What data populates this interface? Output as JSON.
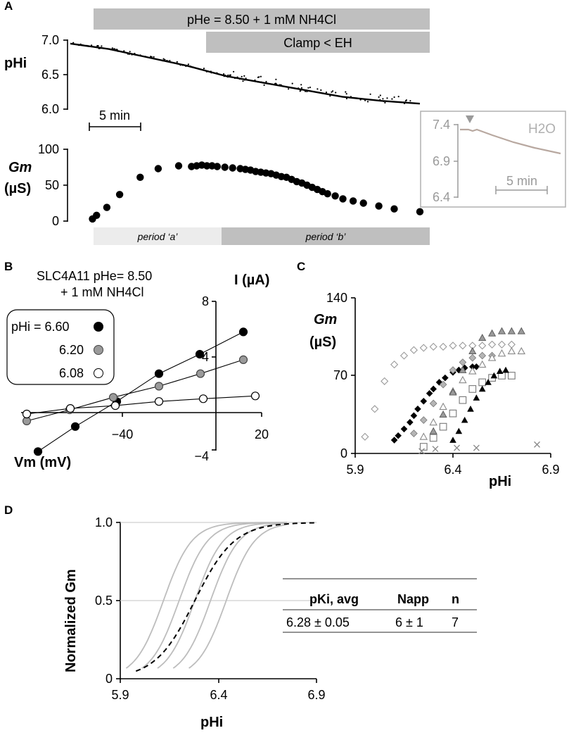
{
  "panels": {
    "a": {
      "label": "A",
      "bar_top": "pHe = 8.50 + 1 mM NH4Cl",
      "bar_clamp": "Clamp < EH",
      "y_label_phi": "pHi",
      "y_ticks_phi": [
        "7.0",
        "6.5",
        "6.0"
      ],
      "scale_label": "5 min",
      "y_label_gm": "Gm",
      "y_label_gm_unit": "(µS)",
      "y_ticks_gm": [
        "100",
        "50",
        "0"
      ],
      "period_a": "period ‘a’",
      "period_b": "period ‘b’",
      "inset": {
        "y_ticks": [
          "7.4",
          "6.9",
          "6.4"
        ],
        "label": "H2O",
        "scale_label": "5 min"
      }
    },
    "b": {
      "label": "B",
      "title_line1": "SLC4A11 pHe= 8.50",
      "title_line2": "+ 1 mM NH4Cl",
      "y_label": "I (µA)",
      "x_label": "Vm (mV)",
      "y_ticks": [
        "8",
        "4",
        "−4"
      ],
      "x_ticks": [
        "−40",
        "20"
      ],
      "legend": [
        "pHi = 6.60",
        "6.20",
        "6.08"
      ]
    },
    "c": {
      "label": "C",
      "y_label": "Gm",
      "y_label_unit": "(µS)",
      "x_label": "pHi",
      "y_ticks": [
        "140",
        "70",
        "0"
      ],
      "x_ticks": [
        "5.9",
        "6.4",
        "6.9"
      ]
    },
    "d": {
      "label": "D",
      "y_label": "Normalized Gm",
      "x_label": "pHi",
      "y_ticks": [
        "1.0",
        "0.5",
        "0"
      ],
      "x_ticks": [
        "5.9",
        "6.4",
        "6.9"
      ],
      "table": {
        "headers": [
          "pKi, avg",
          "Napp",
          "n"
        ],
        "row": [
          "6.28 ± 0.05",
          "6 ± 1",
          "7"
        ]
      }
    }
  },
  "colors": {
    "black": "#000000",
    "gray": "#9a9a9a",
    "light": "#bdbdbd",
    "bar": "#bfbfbf",
    "inset_trace": "#b8a8a0"
  },
  "chart_data": [
    {
      "type": "line",
      "panel": "A-top",
      "ylabel": "pHi",
      "ylim": [
        6.0,
        7.0
      ],
      "x_unit": "min",
      "x": [
        0,
        5,
        10,
        15,
        20,
        25,
        30,
        35,
        40,
        45
      ],
      "values": [
        6.95,
        6.87,
        6.75,
        6.63,
        6.48,
        6.38,
        6.28,
        6.18,
        6.12,
        6.08
      ]
    },
    {
      "type": "scatter",
      "panel": "A-bottom",
      "ylabel": "Gm (µS)",
      "ylim": [
        0,
        100
      ],
      "x_unit": "min",
      "x": [
        0.2,
        1.0,
        3.0,
        5.5,
        9.5,
        13.0,
        17.0,
        19.5,
        20.5,
        21.5,
        22.5,
        23.5,
        24.5,
        26.0,
        27.5,
        29.0,
        30.0,
        31.0,
        32.0,
        33.0,
        34.0,
        35.0,
        36.0,
        37.0,
        38.0,
        39.0,
        40.0,
        41.0,
        42.0,
        43.0,
        44.0,
        45.0,
        46.0,
        47.5,
        49.0,
        51.0,
        53.0,
        56.0,
        59.0,
        64.0
      ],
      "values": [
        3,
        8,
        19,
        37,
        61,
        73,
        77,
        76,
        77,
        78,
        77,
        77,
        76,
        75,
        74,
        73,
        72,
        71,
        69,
        68,
        67,
        66,
        64,
        62,
        61,
        58,
        55,
        53,
        50,
        47,
        44,
        41,
        38,
        35,
        31,
        28,
        25,
        21,
        17,
        13
      ]
    },
    {
      "type": "line",
      "panel": "B",
      "xlabel": "Vm (mV)",
      "ylabel": "I (µA)",
      "xlim": [
        -80,
        20
      ],
      "ylim": [
        -4,
        8
      ],
      "series": [
        {
          "name": "pHi = 6.60",
          "x": [
            -80,
            -60,
            -40,
            -20,
            0,
            20
          ],
          "values": [
            -2.8,
            -1.0,
            0.8,
            2.8,
            4.2,
            5.8
          ]
        },
        {
          "name": "6.20",
          "x": [
            -80,
            -60,
            -40,
            -20,
            0,
            20
          ],
          "values": [
            -0.6,
            0.2,
            1.1,
            1.9,
            2.8,
            3.8
          ]
        },
        {
          "name": "6.08",
          "x": [
            -80,
            -60,
            -40,
            -20,
            0,
            20
          ],
          "values": [
            -0.1,
            0.3,
            0.5,
            0.8,
            1.0,
            1.2
          ]
        }
      ]
    },
    {
      "type": "scatter",
      "panel": "C",
      "xlabel": "pHi",
      "ylabel": "Gm (µS)",
      "xlim": [
        5.9,
        6.9
      ],
      "ylim": [
        0,
        140
      ],
      "series": [
        {
          "marker": "diamond-open-gray",
          "x": [
            5.95,
            6.0,
            6.05,
            6.1,
            6.15,
            6.2,
            6.25,
            6.3,
            6.35,
            6.4,
            6.45,
            6.5,
            6.55,
            6.6,
            6.65,
            6.7
          ],
          "values": [
            15,
            40,
            65,
            80,
            88,
            93,
            95,
            96,
            96,
            97,
            97,
            97,
            97,
            98,
            98,
            98
          ]
        },
        {
          "marker": "diamond-filled-black",
          "x": [
            6.1,
            6.12,
            6.15,
            6.18,
            6.2,
            6.22,
            6.25,
            6.28,
            6.3,
            6.33,
            6.36,
            6.4,
            6.43,
            6.46,
            6.5,
            6.52
          ],
          "values": [
            12,
            16,
            22,
            28,
            34,
            40,
            47,
            54,
            58,
            64,
            68,
            73,
            75,
            77,
            78,
            78
          ]
        },
        {
          "marker": "diamond-filled-gray",
          "x": [
            6.2,
            6.25,
            6.3,
            6.35,
            6.4,
            6.45,
            6.5,
            6.55,
            6.6
          ],
          "values": [
            18,
            30,
            45,
            62,
            75,
            82,
            86,
            88,
            88
          ]
        },
        {
          "marker": "triangle-open-gray",
          "x": [
            6.25,
            6.3,
            6.35,
            6.4,
            6.45,
            6.5,
            6.55,
            6.6,
            6.65,
            6.7,
            6.75
          ],
          "values": [
            15,
            28,
            42,
            56,
            66,
            74,
            80,
            86,
            90,
            92,
            92
          ]
        },
        {
          "marker": "triangle-filled-gray",
          "x": [
            6.3,
            6.35,
            6.4,
            6.45,
            6.5,
            6.55,
            6.6,
            6.65,
            6.7,
            6.75
          ],
          "values": [
            20,
            35,
            55,
            75,
            92,
            104,
            108,
            110,
            110,
            110
          ]
        },
        {
          "marker": "square-open-gray",
          "x": [
            6.25,
            6.3,
            6.35,
            6.4,
            6.45,
            6.5,
            6.55,
            6.6,
            6.65,
            6.7
          ],
          "values": [
            6,
            14,
            24,
            36,
            48,
            58,
            64,
            68,
            70,
            70
          ]
        },
        {
          "marker": "triangle-filled-black",
          "x": [
            6.4,
            6.43,
            6.46,
            6.49,
            6.52,
            6.55,
            6.58,
            6.61,
            6.64,
            6.67
          ],
          "values": [
            12,
            20,
            30,
            40,
            50,
            58,
            64,
            70,
            74,
            75
          ]
        },
        {
          "marker": "cross-gray",
          "x": [
            6.24,
            6.31,
            6.42,
            6.52,
            6.83
          ],
          "values": [
            2,
            4,
            5,
            5,
            8
          ]
        }
      ]
    },
    {
      "type": "line",
      "panel": "D",
      "xlabel": "pHi",
      "ylabel": "Normalized Gm",
      "xlim": [
        5.9,
        6.9
      ],
      "ylim": [
        0,
        1
      ],
      "N": 6,
      "pK_curves": [
        6.12,
        6.2,
        6.28,
        6.36,
        6.44
      ],
      "pK_avg": 6.28
    }
  ]
}
